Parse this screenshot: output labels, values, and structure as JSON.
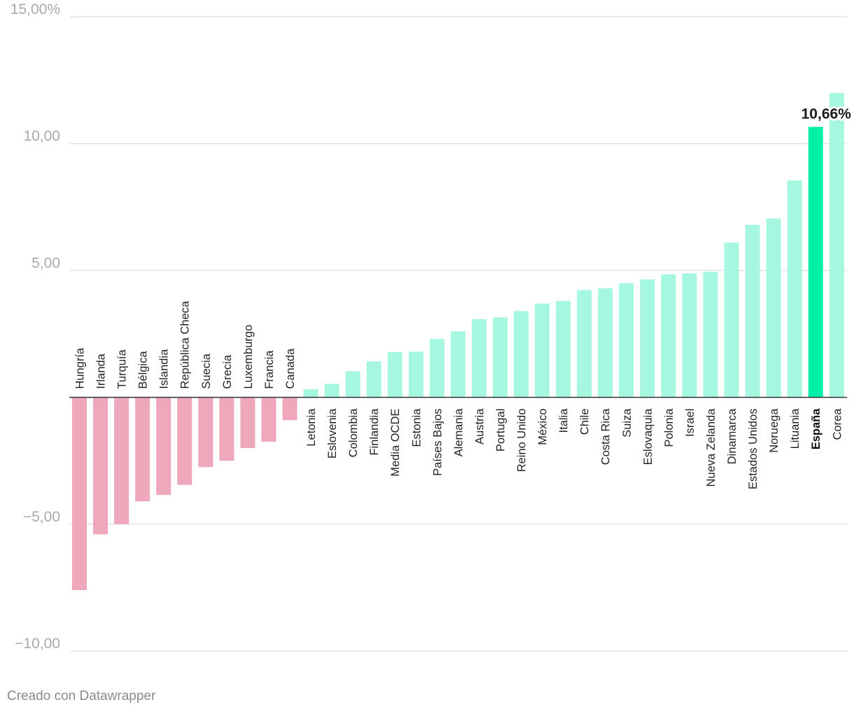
{
  "chart_data": {
    "type": "bar",
    "categories": [
      "Hungría",
      "Irlanda",
      "Turquía",
      "Bélgica",
      "Islandia",
      "República Checa",
      "Suecia",
      "Grecia",
      "Luxemburgo",
      "Francia",
      "Canada",
      "Letonia",
      "Eslovenia",
      "Colombia",
      "Finlandia",
      "Media OCDE",
      "Estonia",
      "Países Bajos",
      "Alemania",
      "Austria",
      "Portugal",
      "Reino Unido",
      "México",
      "Italia",
      "Chile",
      "Costa Rica",
      "Suiza",
      "Eslovaquia",
      "Polonia",
      "Israel",
      "Nueva Zelanda",
      "Dinamarca",
      "Estados Unidos",
      "Noruega",
      "Lituania",
      "España",
      "Corea"
    ],
    "values": [
      -7.6,
      -5.4,
      -5.0,
      -4.1,
      -3.85,
      -3.45,
      -2.75,
      -2.5,
      -2.0,
      -1.75,
      -0.9,
      0.32,
      0.53,
      1.03,
      1.42,
      1.78,
      1.8,
      2.3,
      2.6,
      3.08,
      3.15,
      3.4,
      3.7,
      3.8,
      4.23,
      4.3,
      4.5,
      4.65,
      4.85,
      4.88,
      4.95,
      6.1,
      6.8,
      7.05,
      8.55,
      10.66,
      12.0
    ],
    "ylim": [
      -10,
      15
    ],
    "yticks": [
      {
        "value": 15,
        "label": "15,00%"
      },
      {
        "value": 10,
        "label": "10,00"
      },
      {
        "value": 5,
        "label": "5,00"
      },
      {
        "value": -5,
        "label": "−5,00"
      },
      {
        "value": -10,
        "label": "−10,00"
      }
    ],
    "highlight": {
      "category": "España",
      "value_label": "10,66%"
    },
    "colors": {
      "negative": "#eea7bb",
      "positive": "#a6f7e0",
      "highlight": "#00f0a8",
      "grid": "#e2e2e2",
      "zero_line": "#333333"
    },
    "grid": true,
    "title": "",
    "xlabel": "",
    "ylabel": ""
  },
  "footer": {
    "credit": "Creado con Datawrapper"
  }
}
